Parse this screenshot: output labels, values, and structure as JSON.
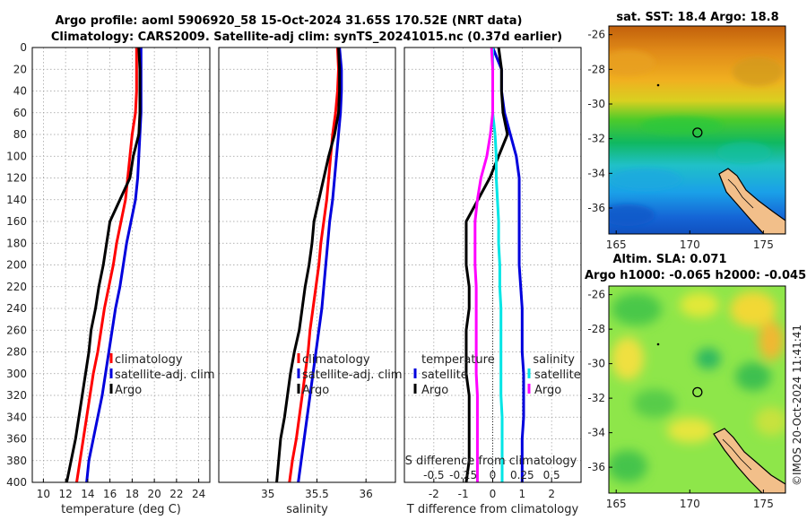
{
  "figure": {
    "title_line1": "Argo profile: aoml 5906920_58 15-Oct-2024 31.65S 170.52E (NRT data)",
    "title_line2": "Climatology: CARS2009. Satellite-adj clim: synTS_20241015.nc (0.37d earlier)",
    "watermark": "©IMOS 20-Oct-2024 11:41:41"
  },
  "colors": {
    "climatology": "#ff0000",
    "satellite": "#0000dd",
    "argo": "#000000",
    "sal_sat": "#00e5e5",
    "sal_argo": "#ff00ff"
  },
  "chart_data": [
    {
      "id": "temperature",
      "type": "line",
      "xlabel": "temperature (deg C)",
      "ylabel": "",
      "xlim": [
        9,
        25
      ],
      "ylim": [
        400,
        0
      ],
      "xticks": [
        10,
        12,
        14,
        16,
        18,
        20,
        22,
        24
      ],
      "yticks": [
        0,
        20,
        40,
        60,
        80,
        100,
        120,
        140,
        160,
        180,
        200,
        220,
        240,
        260,
        280,
        300,
        320,
        340,
        360,
        380,
        400
      ],
      "grid": true,
      "legend": [
        "climatology",
        "satellite-adj. clim",
        "Argo"
      ],
      "series": [
        {
          "name": "climatology",
          "color": "#ff0000",
          "x": [
            18.4,
            18.4,
            18.4,
            18.3,
            18.0,
            17.8,
            17.6,
            17.4,
            17.0,
            16.6,
            16.3,
            15.9,
            15.5,
            15.2,
            14.9,
            14.5,
            14.2,
            13.9,
            13.6,
            13.3,
            13.0
          ],
          "y": [
            0,
            20,
            40,
            60,
            80,
            100,
            120,
            140,
            160,
            180,
            200,
            220,
            240,
            260,
            280,
            300,
            320,
            340,
            360,
            380,
            400
          ]
        },
        {
          "name": "satellite-adj. clim",
          "color": "#0000dd",
          "x": [
            18.8,
            18.8,
            18.8,
            18.8,
            18.7,
            18.6,
            18.5,
            18.3,
            17.9,
            17.5,
            17.2,
            16.9,
            16.5,
            16.2,
            15.9,
            15.6,
            15.3,
            14.9,
            14.5,
            14.1,
            13.9
          ],
          "y": [
            0,
            20,
            40,
            60,
            80,
            100,
            120,
            140,
            160,
            180,
            200,
            220,
            240,
            260,
            280,
            300,
            320,
            340,
            360,
            380,
            400
          ]
        },
        {
          "name": "Argo",
          "color": "#000000",
          "x": [
            18.6,
            18.7,
            18.7,
            18.7,
            18.6,
            18.1,
            17.8,
            16.9,
            16.0,
            15.7,
            15.4,
            15.0,
            14.7,
            14.3,
            14.1,
            13.8,
            13.5,
            13.2,
            12.9,
            12.5,
            12.1
          ],
          "y": [
            0,
            20,
            40,
            60,
            80,
            100,
            120,
            140,
            160,
            180,
            200,
            220,
            240,
            260,
            280,
            300,
            320,
            340,
            360,
            380,
            400
          ]
        }
      ]
    },
    {
      "id": "salinity",
      "type": "line",
      "xlabel": "salinity",
      "ylabel": "",
      "xlim": [
        34.5,
        36.3
      ],
      "ylim": [
        400,
        0
      ],
      "xticks": [
        35,
        35.5,
        36
      ],
      "yticks": [
        0,
        20,
        40,
        60,
        80,
        100,
        120,
        140,
        160,
        180,
        200,
        220,
        240,
        260,
        280,
        300,
        320,
        340,
        360,
        380,
        400
      ],
      "grid": true,
      "legend": [
        "climatology",
        "satellite-adj. clim",
        "Argo"
      ],
      "series": [
        {
          "name": "climatology",
          "color": "#ff0000",
          "x": [
            35.71,
            35.72,
            35.71,
            35.69,
            35.66,
            35.64,
            35.62,
            35.6,
            35.57,
            35.54,
            35.52,
            35.49,
            35.46,
            35.43,
            35.41,
            35.38,
            35.35,
            35.32,
            35.29,
            35.25,
            35.22
          ],
          "y": [
            0,
            20,
            40,
            60,
            80,
            100,
            120,
            140,
            160,
            180,
            200,
            220,
            240,
            260,
            280,
            300,
            320,
            340,
            360,
            380,
            400
          ]
        },
        {
          "name": "satellite-adj. clim",
          "color": "#0000dd",
          "x": [
            35.73,
            35.75,
            35.75,
            35.74,
            35.72,
            35.7,
            35.68,
            35.66,
            35.63,
            35.61,
            35.59,
            35.57,
            35.55,
            35.52,
            35.49,
            35.46,
            35.43,
            35.4,
            35.37,
            35.34,
            35.31
          ],
          "y": [
            0,
            20,
            40,
            60,
            80,
            100,
            120,
            140,
            160,
            180,
            200,
            220,
            240,
            260,
            280,
            300,
            320,
            340,
            360,
            380,
            400
          ]
        },
        {
          "name": "Argo",
          "color": "#000000",
          "x": [
            35.72,
            35.73,
            35.73,
            35.72,
            35.68,
            35.62,
            35.57,
            35.52,
            35.47,
            35.45,
            35.42,
            35.38,
            35.35,
            35.32,
            35.27,
            35.23,
            35.2,
            35.17,
            35.13,
            35.11,
            35.09
          ],
          "y": [
            0,
            20,
            40,
            60,
            80,
            100,
            120,
            140,
            160,
            180,
            200,
            220,
            240,
            260,
            280,
            300,
            320,
            340,
            360,
            380,
            400
          ]
        }
      ]
    },
    {
      "id": "difference",
      "type": "line",
      "xlabel": "T difference from climatology",
      "xlabel_top": "S difference from climatology",
      "xlim": [
        -3,
        3
      ],
      "ylim": [
        400,
        0
      ],
      "xticks": [
        -2,
        -1,
        0,
        1,
        2
      ],
      "xtick_labels": [
        "-2",
        "-1",
        "0",
        "1",
        "2"
      ],
      "s_ticks": [
        -0.5,
        -0.25,
        0,
        0.25,
        0.5
      ],
      "s_tick_labels": [
        "-0.5",
        "-0.25",
        "0",
        "0.25",
        "0.5"
      ],
      "yticks": [
        0,
        20,
        40,
        60,
        80,
        100,
        120,
        140,
        160,
        180,
        200,
        220,
        240,
        260,
        280,
        300,
        320,
        340,
        360,
        380,
        400
      ],
      "grid": true,
      "legend_temp_title": "temperature",
      "legend_sal_title": "salinity",
      "legend_temp": [
        "satellite",
        "Argo"
      ],
      "legend_sal": [
        "satellite",
        "Argo"
      ],
      "series": [
        {
          "name": "T satellite",
          "color": "#0000dd",
          "x": [
            0.0,
            0.3,
            0.3,
            0.4,
            0.6,
            0.8,
            0.9,
            0.9,
            0.9,
            0.9,
            0.9,
            0.95,
            1.0,
            1.0,
            1.0,
            1.05,
            1.05,
            1.05,
            1.0,
            1.0,
            1.0
          ],
          "y": [
            0,
            20,
            40,
            60,
            80,
            100,
            120,
            140,
            160,
            180,
            200,
            220,
            240,
            260,
            280,
            300,
            320,
            340,
            360,
            380,
            400
          ]
        },
        {
          "name": "T Argo",
          "color": "#000000",
          "x": [
            0.2,
            0.3,
            0.3,
            0.35,
            0.5,
            0.2,
            -0.1,
            -0.5,
            -0.9,
            -0.9,
            -0.9,
            -0.8,
            -0.8,
            -0.9,
            -0.9,
            -0.9,
            -0.8,
            -0.8,
            -0.8,
            -0.8,
            -0.9
          ],
          "y": [
            0,
            20,
            40,
            60,
            80,
            100,
            120,
            140,
            160,
            180,
            200,
            220,
            240,
            260,
            280,
            300,
            320,
            340,
            360,
            380,
            400
          ]
        },
        {
          "name": "S satellite",
          "color": "#00e5e5",
          "x": [
            0.0,
            0.0,
            0.0,
            0.0,
            0.02,
            0.03,
            0.03,
            0.04,
            0.05,
            0.05,
            0.06,
            0.06,
            0.07,
            0.07,
            0.07,
            0.07,
            0.07,
            0.08,
            0.08,
            0.08,
            0.08
          ],
          "y": [
            0,
            20,
            40,
            60,
            80,
            100,
            120,
            140,
            160,
            180,
            200,
            220,
            240,
            260,
            280,
            300,
            320,
            340,
            360,
            380,
            400
          ]
        },
        {
          "name": "S Argo",
          "color": "#ff00ff",
          "x": [
            -0.01,
            0.0,
            0.0,
            0.0,
            -0.02,
            -0.05,
            -0.1,
            -0.13,
            -0.15,
            -0.15,
            -0.15,
            -0.14,
            -0.14,
            -0.14,
            -0.14,
            -0.14,
            -0.13,
            -0.13,
            -0.13,
            -0.13,
            -0.13
          ],
          "y": [
            0,
            20,
            40,
            60,
            80,
            100,
            120,
            140,
            160,
            180,
            200,
            220,
            240,
            260,
            280,
            300,
            320,
            340,
            360,
            380,
            400
          ]
        }
      ]
    },
    {
      "id": "sst_map",
      "type": "heatmap",
      "title": "sat. SST: 18.4 Argo: 18.8",
      "xlim": [
        164.5,
        176.5
      ],
      "ylim": [
        -37.5,
        -25.5
      ],
      "xticks": [
        165,
        170,
        175
      ],
      "yticks": [
        -26,
        -28,
        -30,
        -32,
        -34,
        -36
      ],
      "float_lon": 170.52,
      "float_lat": -31.65
    },
    {
      "id": "sla_map",
      "type": "heatmap",
      "title_line1": "Altim. SLA: 0.071",
      "title_line2": "Argo h1000: -0.065 h2000: -0.045",
      "xlim": [
        164.5,
        176.5
      ],
      "ylim": [
        -37.5,
        -25.5
      ],
      "xticks": [
        165,
        170,
        175
      ],
      "yticks": [
        -26,
        -28,
        -30,
        -32,
        -34,
        -36
      ],
      "float_lon": 170.52,
      "float_lat": -31.65
    }
  ]
}
